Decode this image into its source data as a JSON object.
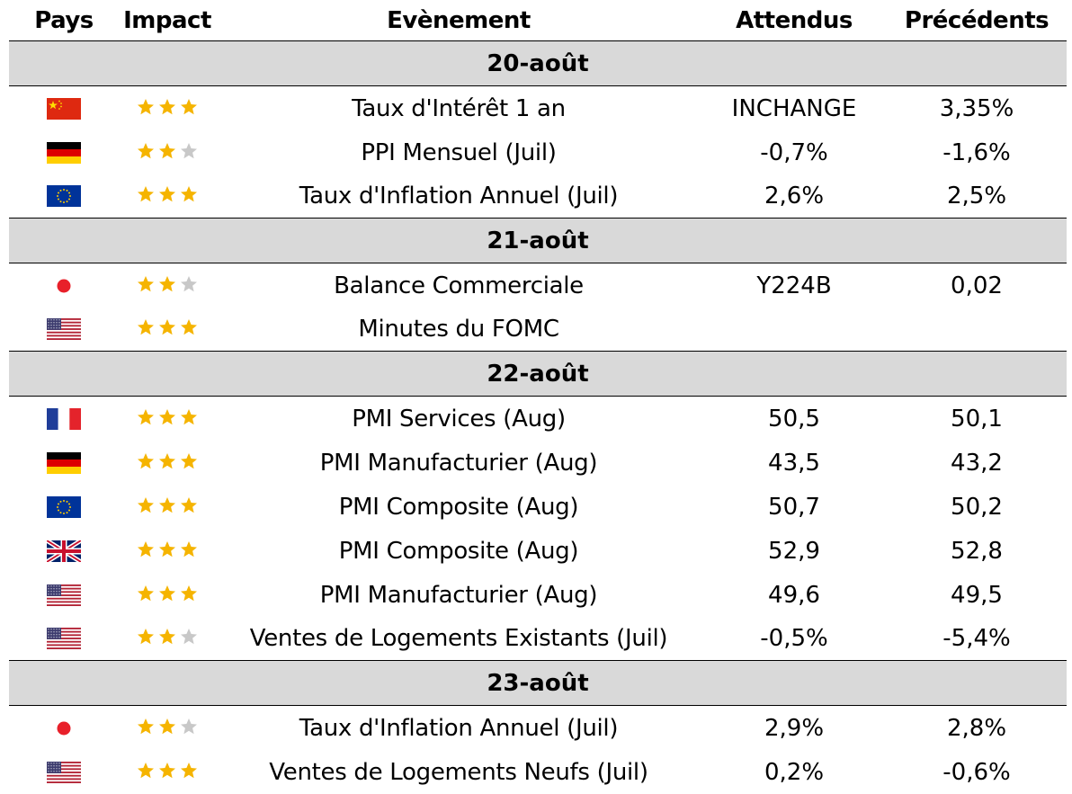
{
  "header": {
    "country": "Pays",
    "impact": "Impact",
    "event": "Evènement",
    "expected": "Attendus",
    "previous": "Précédents"
  },
  "colors": {
    "date_band": "#d9d9d9",
    "star_on": "#f5b400",
    "star_off": "#c8c8c8"
  },
  "sections": [
    {
      "date": "20-août",
      "events": [
        {
          "flag": "china-flag",
          "stars": 3,
          "event": "Taux d'Intérêt 1 an",
          "expected": "INCHANGE",
          "previous": "3,35%"
        },
        {
          "flag": "germany-flag",
          "stars": 2,
          "event": "PPI Mensuel (Juil)",
          "expected": "-0,7%",
          "previous": "-1,6%"
        },
        {
          "flag": "eu-flag",
          "stars": 3,
          "event": "Taux d'Inflation Annuel (Juil)",
          "expected": "2,6%",
          "previous": "2,5%"
        }
      ]
    },
    {
      "date": "21-août",
      "events": [
        {
          "flag": "japan-flag",
          "stars": 2,
          "event": "Balance Commerciale",
          "expected": "Y224B",
          "previous": "0,02"
        },
        {
          "flag": "usa-flag",
          "stars": 3,
          "event": "Minutes du FOMC",
          "expected": "",
          "previous": ""
        }
      ]
    },
    {
      "date": "22-août",
      "events": [
        {
          "flag": "france-flag",
          "stars": 3,
          "event": "PMI Services (Aug)",
          "expected": "50,5",
          "previous": "50,1"
        },
        {
          "flag": "germany-flag",
          "stars": 3,
          "event": "PMI Manufacturier (Aug)",
          "expected": "43,5",
          "previous": "43,2"
        },
        {
          "flag": "eu-flag",
          "stars": 3,
          "event": "PMI Composite (Aug)",
          "expected": "50,7",
          "previous": "50,2"
        },
        {
          "flag": "uk-flag",
          "stars": 3,
          "event": "PMI Composite (Aug)",
          "expected": "52,9",
          "previous": "52,8"
        },
        {
          "flag": "usa-flag",
          "stars": 3,
          "event": "PMI Manufacturier (Aug)",
          "expected": "49,6",
          "previous": "49,5"
        },
        {
          "flag": "usa-flag",
          "stars": 2,
          "event": "Ventes de Logements Existants (Juil)",
          "expected": "-0,5%",
          "previous": "-5,4%"
        }
      ]
    },
    {
      "date": "23-août",
      "events": [
        {
          "flag": "japan-flag",
          "stars": 2,
          "event": "Taux d'Inflation Annuel (Juil)",
          "expected": "2,9%",
          "previous": "2,8%"
        },
        {
          "flag": "usa-flag",
          "stars": 3,
          "event": "Ventes de Logements Neufs (Juil)",
          "expected": "0,2%",
          "previous": "-0,6%"
        }
      ]
    }
  ]
}
